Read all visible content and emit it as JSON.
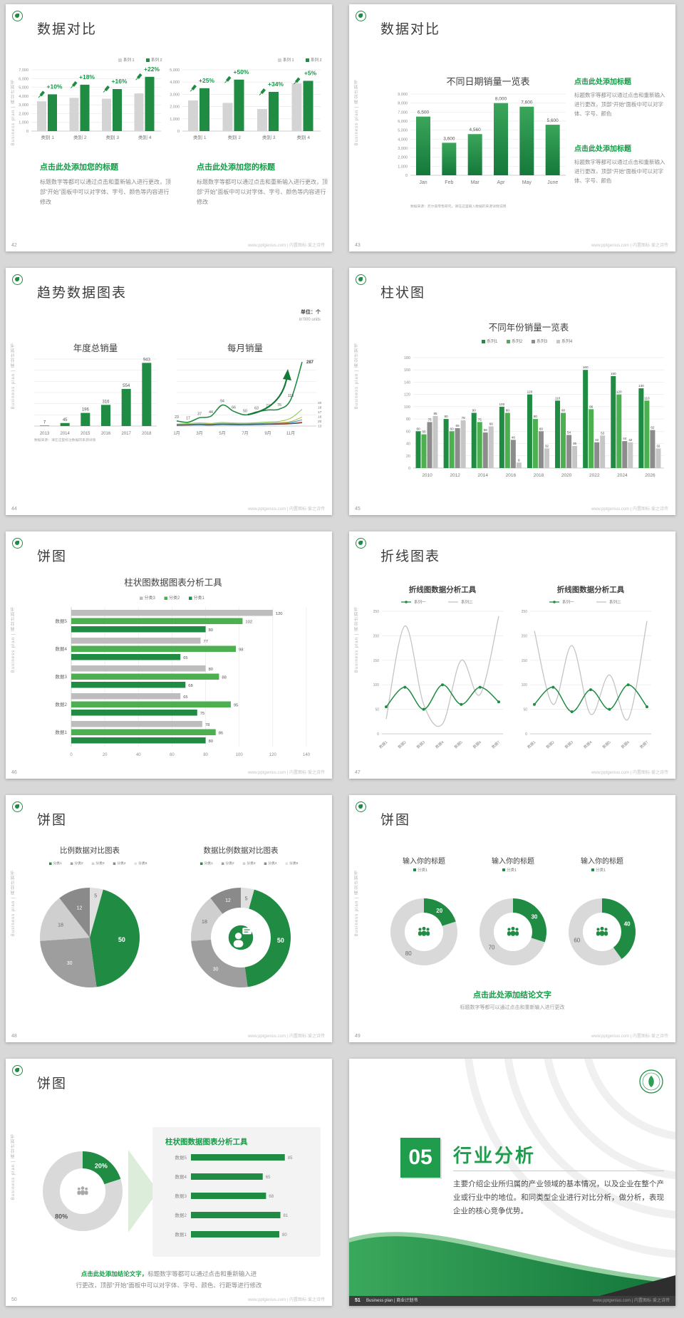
{
  "common": {
    "vertical_text": "Business plan | 商业计划书",
    "footer_right": "www.pptgenius.com | 内置图标·爱之诗传",
    "brand_green": "#1f8b43",
    "heading_green": "#159a47"
  },
  "slides": {
    "s42": {
      "num": "42",
      "title": "数据对比",
      "blocks": [
        {
          "heading": "点击此处添加您的标题",
          "body": "标题数字等都可以通过点击和重新输入进行更改，顶部“开始”面板中可以对字体、字号、颜色等内容进行修改"
        },
        {
          "heading": "点击此处添加您的标题",
          "body": "标题数字等都可以通过点击和重新输入进行更改，顶部“开始”面板中可以对字体、字号、颜色等内容进行修改"
        }
      ]
    },
    "s43": {
      "num": "43",
      "title": "数据对比",
      "blocks": [
        {
          "heading": "点击此处添加标题",
          "body": "标题数字等都可以通过点击和重新输入进行更改，顶部“开始”面板中可以对字体、字号、颜色"
        },
        {
          "heading": "点击此处添加标题",
          "body": "标题数字等都可以通过点击和重新输入进行更改，顶部“开始”面板中可以对字体、字号、颜色"
        }
      ],
      "source_note": "数据来源：尼尔森零售研究，请在这里输入数据的来源详情说明"
    },
    "s44": {
      "num": "44",
      "title": "趋势数据图表",
      "unit1": "单位：个",
      "unit2": "in'000 units",
      "source_note": "数据来源：请在这里标注数据的来源详情"
    },
    "s45": {
      "num": "45",
      "title": "柱状图"
    },
    "s46": {
      "num": "46",
      "title": "饼图"
    },
    "s47": {
      "num": "47",
      "title": "折线图表"
    },
    "s48": {
      "num": "48",
      "title": "饼图"
    },
    "s49": {
      "num": "49",
      "title": "饼图",
      "conclusion": "点击此处添加结论文字",
      "conclusion_sub": "标题数字等都可以通过点击和重新输入进行更改"
    },
    "s50": {
      "num": "50",
      "title": "饼图",
      "conclusion_lead": "点击此处添加结论文字，",
      "conclusion_line1": "标题数字等都可以通过点击和重新输入进",
      "conclusion_line2": "行更改，顶部“开始”面板中可以对字体、字号、颜色、行距等进行修改"
    },
    "s51": {
      "num": "51",
      "section_no": "05",
      "section_title": "行业分析",
      "paragraph": "主要介绍企业所归属的产业领域的基本情况，以及企业在整个产业或行业中的地位。和同类型企业进行对比分析，做分析，表现企业的核心竞争优势。",
      "footer_brand": "Business plan | 商业计划书"
    }
  },
  "chart_data": [
    {
      "id": "c42L",
      "slide": 42,
      "type": "bar",
      "categories": [
        "类别 1",
        "类别 2",
        "类别 3",
        "类别 4"
      ],
      "series": [
        {
          "name": "系列 1",
          "color": "#d4d4d4",
          "values": [
            3400,
            3800,
            3700,
            4300
          ]
        },
        {
          "name": "系列 2",
          "color": "#1f8b43",
          "values": [
            4200,
            5300,
            4800,
            6200
          ]
        }
      ],
      "annotations": [
        "+10%",
        "+18%",
        "+16%",
        "+22%"
      ],
      "ylim": [
        0,
        7000
      ],
      "ytick": 1000,
      "legend_position": "top-right",
      "grid": true
    },
    {
      "id": "c42R",
      "slide": 42,
      "type": "bar",
      "categories": [
        "类别 1",
        "类别 2",
        "类别 3",
        "类别 4"
      ],
      "series": [
        {
          "name": "系列 1",
          "color": "#d4d4d4",
          "values": [
            2500,
            2300,
            1800,
            3900
          ]
        },
        {
          "name": "系列 2",
          "color": "#1f8b43",
          "values": [
            3500,
            4200,
            3200,
            4100
          ]
        }
      ],
      "annotations": [
        "+25%",
        "+50%",
        "+34%",
        "+5%"
      ],
      "ylim": [
        0,
        5000
      ],
      "ytick": 1000,
      "legend_position": "top-right",
      "grid": true
    },
    {
      "id": "c43",
      "slide": 43,
      "type": "bar",
      "title": "不同日期销量一览表",
      "categories": [
        "Jan",
        "Feb",
        "Mar",
        "Apr",
        "May",
        "June"
      ],
      "values": [
        6500,
        3600,
        4560,
        8000,
        7600,
        5600
      ],
      "ylim": [
        0,
        9000
      ],
      "ytick": 1000,
      "bar_color": "#1f8b43",
      "value_labels": true,
      "grid": true
    },
    {
      "id": "c44L",
      "slide": 44,
      "type": "bar",
      "title": "年度总销量",
      "categories": [
        "2013",
        "2014",
        "2015",
        "2016",
        "2017",
        "2018"
      ],
      "values": [
        7,
        45,
        196,
        316,
        554,
        943
      ],
      "ylim": [
        0,
        1000
      ],
      "bar_color": "#1f8b43",
      "value_labels": true,
      "grid": true
    },
    {
      "id": "c44R",
      "slide": 44,
      "type": "line",
      "title": "每月销量",
      "x": [
        "1月",
        "2月",
        "3月",
        "4月",
        "5月",
        "6月",
        "7月",
        "8月",
        "9月",
        "10月",
        "11月",
        "12月"
      ],
      "x_shown": [
        "1月",
        "3月",
        "5月",
        "7月",
        "9月",
        "11月"
      ],
      "series": [
        {
          "name": "主系列",
          "color": "#1f8b43",
          "values": [
            23,
            17,
            37,
            44,
            94,
            66,
            50,
            63,
            72,
            76,
            118,
            287
          ],
          "labeled": true
        },
        {
          "color": "#8bc34a",
          "values": [
            9,
            11,
            14,
            12,
            16,
            14,
            13,
            15,
            18,
            21,
            35,
            75
          ]
        },
        {
          "color": "#b8b433",
          "values": [
            7,
            8,
            10,
            9,
            12,
            11,
            10,
            12,
            13,
            15,
            20,
            40
          ]
        },
        {
          "color": "#3a97c9",
          "values": [
            6,
            7,
            9,
            8,
            10,
            9,
            9,
            10,
            12,
            13,
            16,
            28
          ]
        },
        {
          "color": "#d9531e",
          "values": [
            4,
            5,
            6,
            6,
            7,
            7,
            6,
            8,
            9,
            10,
            12,
            18
          ]
        },
        {
          "color": "#25537b",
          "values": [
            3,
            4,
            5,
            4,
            6,
            5,
            5,
            6,
            7,
            8,
            10,
            14
          ]
        }
      ],
      "end_labels": [
        20,
        18,
        17,
        16,
        20,
        13
      ],
      "ylim": [
        0,
        300
      ],
      "grid": true
    },
    {
      "id": "c45",
      "slide": 45,
      "type": "bar",
      "title": "不同年份销量一览表",
      "categories": [
        "2010",
        "2012",
        "2014",
        "2016",
        "2018",
        "2020",
        "2022",
        "2024",
        "2026"
      ],
      "series": [
        {
          "name": "系列1",
          "color": "#1f8b43",
          "values": [
            60,
            80,
            90,
            100,
            120,
            110,
            160,
            150,
            130
          ]
        },
        {
          "name": "系列2",
          "color": "#4caf50",
          "values": [
            55,
            60,
            75,
            90,
            80,
            90,
            96,
            120,
            110
          ]
        },
        {
          "name": "系列3",
          "color": "#8c8c8c",
          "values": [
            75,
            65,
            58,
            46,
            60,
            54,
            42,
            44,
            62
          ]
        },
        {
          "name": "系列4",
          "color": "#c6c6c6",
          "values": [
            85,
            78,
            68,
            9,
            32,
            36,
            53,
            42,
            32
          ]
        }
      ],
      "ylim": [
        0,
        180
      ],
      "ytick": 20,
      "value_labels": true,
      "legend_position": "top",
      "grid": true
    },
    {
      "id": "c46",
      "slide": 46,
      "type": "hbar",
      "title": "柱状图数据图表分析工具",
      "categories": [
        "数据5",
        "数据4",
        "数据3",
        "数据2",
        "数据1"
      ],
      "series": [
        {
          "name": "分类3",
          "color": "#bdbdbd",
          "values": [
            120,
            77,
            80,
            65,
            78
          ]
        },
        {
          "name": "分类2",
          "color": "#4caf50",
          "values": [
            102,
            98,
            88,
            95,
            86
          ]
        },
        {
          "name": "分类1",
          "color": "#1f8b43",
          "values": [
            80,
            65,
            68,
            75,
            80
          ]
        }
      ],
      "xlim": [
        0,
        140
      ],
      "xtick": 20,
      "value_labels": true,
      "legend_position": "top",
      "grid": true
    },
    {
      "id": "c47L",
      "slide": 47,
      "type": "line",
      "title": "折线图数据分析工具",
      "x": [
        "数据1",
        "数据2",
        "数据3",
        "数据4",
        "数据5",
        "数据6",
        "数据7"
      ],
      "series": [
        {
          "name": "系列一",
          "color": "#1f8b43",
          "values": [
            55,
            95,
            50,
            100,
            60,
            95,
            65
          ],
          "markers": true
        },
        {
          "name": "系列二",
          "color": "#c4c4c4",
          "values": [
            30,
            220,
            60,
            20,
            150,
            80,
            240
          ]
        }
      ],
      "ylim": [
        0,
        250
      ],
      "ytick": 50,
      "grid": true
    },
    {
      "id": "c47R",
      "slide": 47,
      "type": "line",
      "title": "折线图数据分析工具",
      "x": [
        "数据1",
        "数据2",
        "数据3",
        "数据4",
        "数据5",
        "数据6",
        "数据7"
      ],
      "series": [
        {
          "name": "系列一",
          "color": "#1f8b43",
          "values": [
            60,
            95,
            45,
            90,
            50,
            100,
            55
          ],
          "markers": true
        },
        {
          "name": "系列二",
          "color": "#c4c4c4",
          "values": [
            210,
            60,
            180,
            40,
            120,
            30,
            230
          ]
        }
      ],
      "ylim": [
        0,
        250
      ],
      "ytick": 50,
      "grid": true
    },
    {
      "id": "c48L",
      "slide": 48,
      "type": "pie",
      "title": "比例数据对比图表",
      "legend": [
        "分类1",
        "分类2",
        "分类3",
        "分类4",
        "分类5"
      ],
      "legend_colors": [
        "#1f8b43",
        "#9e9e9e",
        "#cfcfcf",
        "#8a8a8a",
        "#e0e0e0"
      ],
      "slices": [
        {
          "value": 5,
          "color": "#e0e0e0"
        },
        {
          "value": 50,
          "color": "#1f8b43"
        },
        {
          "value": 30,
          "color": "#9e9e9e"
        },
        {
          "value": 18,
          "color": "#cfcfcf"
        },
        {
          "value": 12,
          "color": "#8a8a8a"
        }
      ]
    },
    {
      "id": "c48R",
      "slide": 48,
      "type": "donut",
      "title": "数据比例数据对比图表",
      "legend": [
        "分类1",
        "分类2",
        "分类3",
        "分类4",
        "分类5"
      ],
      "legend_colors": [
        "#1f8b43",
        "#9e9e9e",
        "#cfcfcf",
        "#8a8a8a",
        "#e0e0e0"
      ],
      "slices": [
        {
          "value": 5,
          "color": "#e0e0e0"
        },
        {
          "value": 50,
          "color": "#1f8b43"
        },
        {
          "value": 30,
          "color": "#9e9e9e"
        },
        {
          "value": 18,
          "color": "#cfcfcf"
        },
        {
          "value": 12,
          "color": "#8a8a8a"
        }
      ],
      "center_icon": "person-speech-bubble"
    },
    {
      "id": "c49a",
      "slide": 49,
      "type": "donut",
      "title": "输入你的标题",
      "legend": [
        "分类1"
      ],
      "values": [
        20,
        80
      ],
      "colors": [
        "#1f8b43",
        "#d9d9d9"
      ],
      "center_icon": "people"
    },
    {
      "id": "c49b",
      "slide": 49,
      "type": "donut",
      "title": "输入你的标题",
      "legend": [
        "分类1"
      ],
      "values": [
        30,
        70
      ],
      "colors": [
        "#1f8b43",
        "#d9d9d9"
      ],
      "center_icon": "people"
    },
    {
      "id": "c49c",
      "slide": 49,
      "type": "donut",
      "title": "输入你的标题",
      "legend": [
        "分类1"
      ],
      "values": [
        40,
        60
      ],
      "colors": [
        "#1f8b43",
        "#d9d9d9"
      ],
      "center_icon": "people"
    },
    {
      "id": "c50donut",
      "slide": 50,
      "type": "donut",
      "values": [
        20,
        80
      ],
      "labels": [
        "20%",
        "80%"
      ],
      "colors": [
        "#1f8b43",
        "#d9d9d9"
      ],
      "center_icon": "people"
    },
    {
      "id": "c50bars",
      "slide": 50,
      "type": "hbar",
      "title": "柱状图数据图表分析工具",
      "categories": [
        "数据5",
        "数据4",
        "数据3",
        "数据2",
        "数据1"
      ],
      "values": [
        85,
        65,
        68,
        81,
        80
      ],
      "bar_color": "#1f8b43",
      "value_labels": true
    }
  ]
}
